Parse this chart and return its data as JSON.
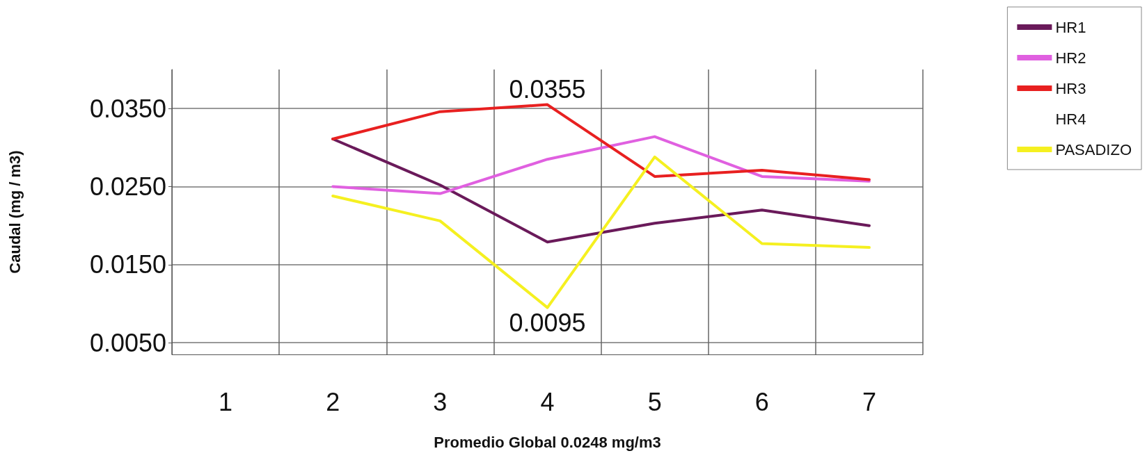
{
  "chart_data": {
    "type": "line",
    "xlabel": "Promedio Global 0.0248 mg/m3",
    "ylabel": "Caudal (mg / m3)",
    "categories": [
      "1",
      "2",
      "3",
      "4",
      "5",
      "6",
      "7"
    ],
    "series": [
      {
        "name": "HR1",
        "color": "#6a1a5a",
        "values": [
          null,
          0.0311,
          0.0252,
          0.0179,
          0.0203,
          0.022,
          0.02
        ]
      },
      {
        "name": "HR2",
        "color": "#e060e0",
        "values": [
          null,
          0.025,
          0.0241,
          0.0285,
          0.0314,
          0.0263,
          0.0257
        ]
      },
      {
        "name": "HR3",
        "color": "#e82020",
        "values": [
          null,
          0.0311,
          0.0346,
          0.0355,
          0.0263,
          0.0271,
          0.0259
        ],
        "value_labels": [
          null,
          null,
          null,
          "0.0355",
          null,
          null,
          null
        ]
      },
      {
        "name": "HR4",
        "values": [
          null,
          null,
          null,
          null,
          null,
          null,
          null
        ]
      },
      {
        "name": "PASADIZO",
        "color": "#f5f020",
        "values": [
          null,
          0.0238,
          0.0206,
          0.0095,
          0.0288,
          0.0177,
          0.0172
        ],
        "value_labels": [
          null,
          null,
          null,
          "0.0095",
          null,
          null,
          null
        ]
      }
    ],
    "ylim": [
      0.0035,
      0.04
    ],
    "yticks": [
      {
        "value": 0.005,
        "label": "0.0050"
      },
      {
        "value": 0.015,
        "label": "0.0150"
      },
      {
        "value": 0.025,
        "label": "0.0250"
      },
      {
        "value": 0.035,
        "label": "0.0350"
      }
    ],
    "grid": true,
    "legend": "top right",
    "marker": "none",
    "line_style": "solid"
  }
}
